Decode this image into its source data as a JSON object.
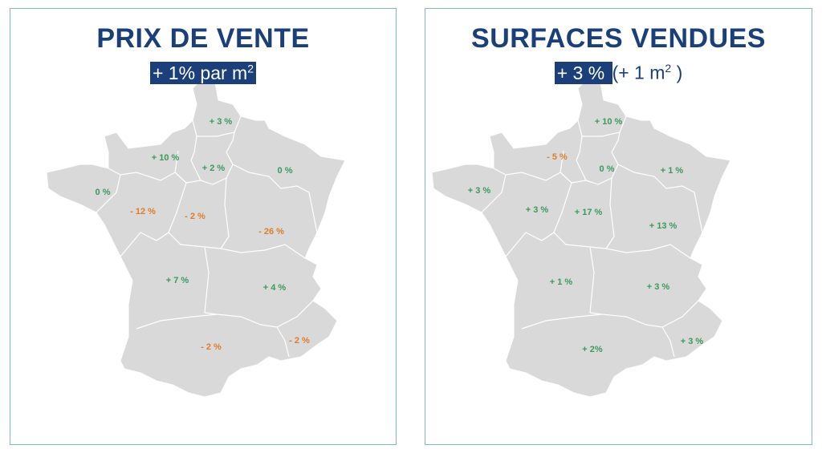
{
  "colors": {
    "title": "#1a3f7a",
    "positive": "#3a9a5a",
    "negative": "#e07b2a",
    "land": "#d9d9d9"
  },
  "left": {
    "title": "PRIX DE VENTE",
    "subtitle_highlight": "+ 1% par m",
    "subtitle_sup": "2",
    "regions": [
      {
        "name": "hauts-de-france",
        "value": "+ 3 %",
        "sign": "positive"
      },
      {
        "name": "normandie",
        "value": "+ 10 %",
        "sign": "positive"
      },
      {
        "name": "ile-de-france",
        "value": "+ 2 %",
        "sign": "positive"
      },
      {
        "name": "grand-est",
        "value": "0 %",
        "sign": "positive"
      },
      {
        "name": "bretagne",
        "value": "0 %",
        "sign": "positive"
      },
      {
        "name": "pays-de-la-loire",
        "value": "- 12 %",
        "sign": "negative"
      },
      {
        "name": "centre-val-de-loire",
        "value": "- 2 %",
        "sign": "negative"
      },
      {
        "name": "bourgogne-franche-comte",
        "value": "- 26 %",
        "sign": "negative"
      },
      {
        "name": "nouvelle-aquitaine",
        "value": "+ 7 %",
        "sign": "positive"
      },
      {
        "name": "auvergne-rhone-alpes",
        "value": "+ 4 %",
        "sign": "positive"
      },
      {
        "name": "occitanie",
        "value": "- 2 %",
        "sign": "negative"
      },
      {
        "name": "paca",
        "value": "- 2 %",
        "sign": "negative"
      }
    ]
  },
  "right": {
    "title": "SURFACES VENDUES",
    "subtitle_highlight": "+ 3 % ",
    "subtitle_rest": "(+ 1 m",
    "subtitle_sup": "2",
    "subtitle_end": " )",
    "regions": [
      {
        "name": "hauts-de-france",
        "value": "+ 10 %",
        "sign": "positive"
      },
      {
        "name": "normandie",
        "value": "- 5 %",
        "sign": "negative"
      },
      {
        "name": "ile-de-france",
        "value": "0 %",
        "sign": "positive"
      },
      {
        "name": "grand-est",
        "value": "+ 1 %",
        "sign": "positive"
      },
      {
        "name": "bretagne",
        "value": "+  3 %",
        "sign": "positive"
      },
      {
        "name": "pays-de-la-loire",
        "value": "+ 3 %",
        "sign": "positive"
      },
      {
        "name": "centre-val-de-loire",
        "value": "+ 17 %",
        "sign": "positive"
      },
      {
        "name": "bourgogne-franche-comte",
        "value": "+ 13 %",
        "sign": "positive"
      },
      {
        "name": "nouvelle-aquitaine",
        "value": "+ 1 %",
        "sign": "positive"
      },
      {
        "name": "auvergne-rhone-alpes",
        "value": "+ 3 %",
        "sign": "positive"
      },
      {
        "name": "occitanie",
        "value": "+ 2%",
        "sign": "positive"
      },
      {
        "name": "paca",
        "value": "+ 3 %",
        "sign": "positive"
      }
    ]
  }
}
